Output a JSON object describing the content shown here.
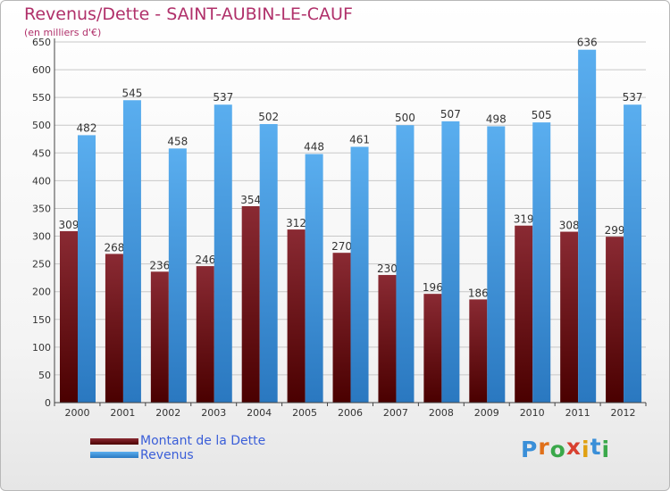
{
  "chart_data": {
    "type": "bar",
    "title": "Revenus/Dette - SAINT-AUBIN-LE-CAUF",
    "subtitle": "(en milliers d'€)",
    "categories": [
      "2000",
      "2001",
      "2002",
      "2003",
      "2004",
      "2005",
      "2006",
      "2007",
      "2008",
      "2009",
      "2010",
      "2011",
      "2012"
    ],
    "series": [
      {
        "name": "Montant de la Dette",
        "values": [
          309,
          268,
          236,
          246,
          354,
          312,
          270,
          230,
          196,
          186,
          319,
          308,
          299
        ],
        "color_top": "#8a2a33",
        "color_bottom": "#4a0000"
      },
      {
        "name": "Revenus",
        "values": [
          482,
          545,
          458,
          537,
          502,
          448,
          461,
          500,
          507,
          498,
          505,
          636,
          537
        ],
        "color_top": "#5aaeef",
        "color_bottom": "#2a78c0"
      }
    ],
    "yticks": [
      0,
      50,
      100,
      150,
      200,
      250,
      300,
      350,
      400,
      450,
      500,
      550,
      600,
      650
    ],
    "ylim": [
      0,
      650
    ],
    "grid": true,
    "legend_position": "bottom-left"
  },
  "logo": {
    "letters": [
      "P",
      "r",
      "o",
      "x",
      "i",
      "t",
      "i"
    ],
    "colors": [
      "#3a8fd8",
      "#e0701a",
      "#3aa84a",
      "#d84030",
      "#e0a010",
      "#3a8fd8",
      "#3aa84a"
    ]
  }
}
